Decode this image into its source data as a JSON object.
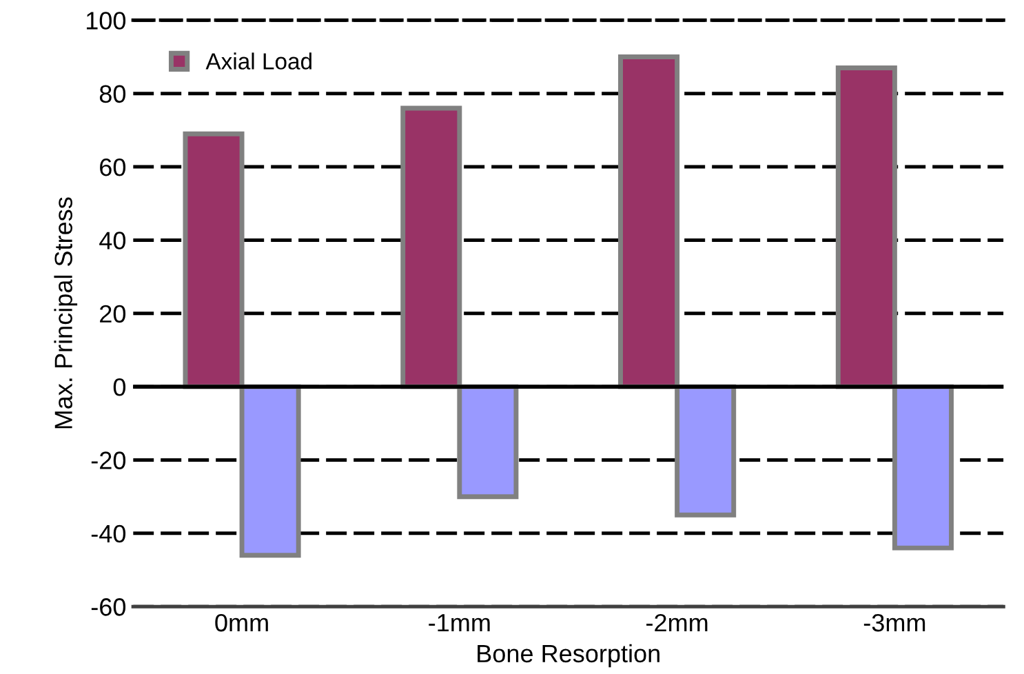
{
  "chart_data": {
    "type": "bar",
    "xlabel": "Bone Resorption",
    "ylabel": "Max. Principal Stress",
    "categories": [
      "0mm",
      "-1mm",
      "-2mm",
      "-3mm"
    ],
    "series": [
      {
        "name": "Axial Load",
        "color": "#993366",
        "values": [
          69,
          76,
          90,
          87
        ]
      },
      {
        "color": "#9999ff",
        "values": [
          -46,
          -30,
          -35,
          -44
        ]
      }
    ],
    "ylim": [
      -60,
      100
    ],
    "yticks": [
      -60,
      -40,
      -20,
      0,
      20,
      40,
      60,
      80,
      100
    ],
    "grid": "y",
    "legend": "top left"
  }
}
